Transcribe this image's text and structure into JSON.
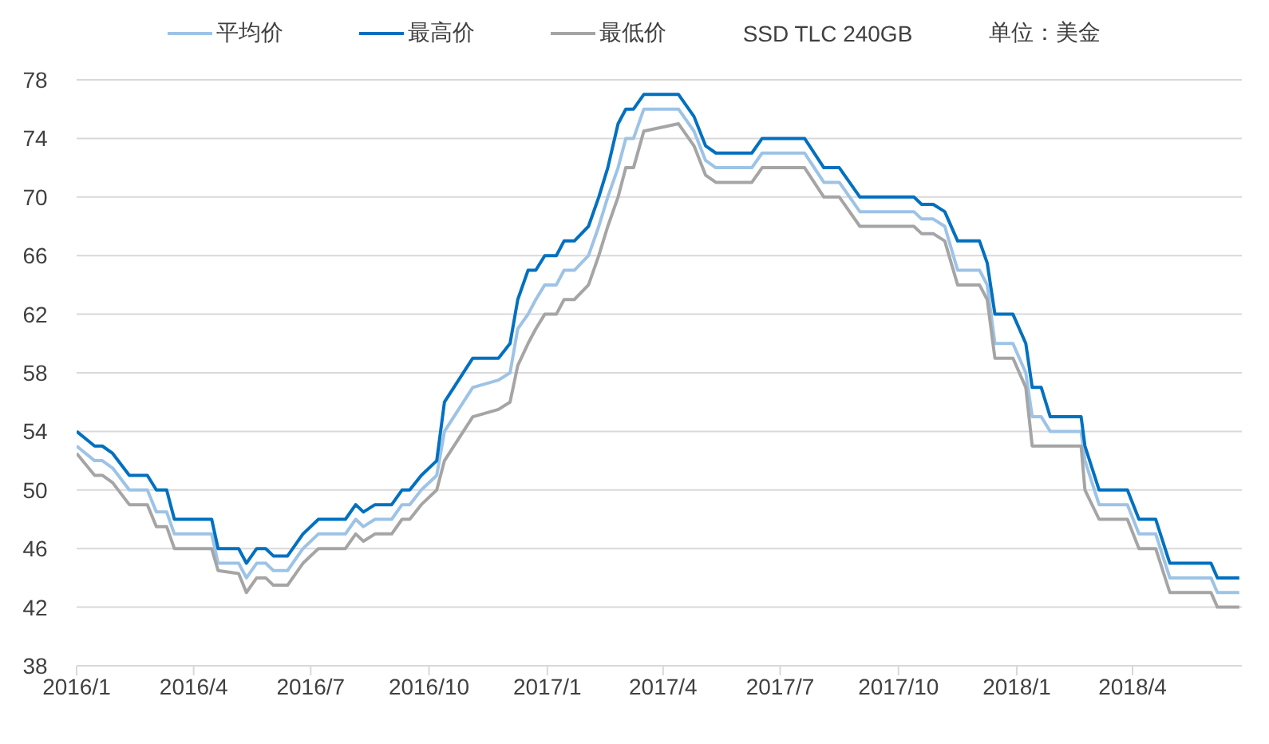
{
  "chart_data": {
    "type": "line",
    "legend": "top",
    "grid": "y",
    "marker": "none",
    "line_style": "solid",
    "annotations": [
      "SSD TLC 240GB",
      "单位：美金"
    ],
    "x": [
      "2016-01-01",
      "2016-01-15",
      "2016-01-21",
      "2016-01-29",
      "2016-02-11",
      "2016-02-25",
      "2016-03-03",
      "2016-03-11",
      "2016-03-17",
      "2016-04-15",
      "2016-04-20",
      "2016-05-06",
      "2016-05-12",
      "2016-05-20",
      "2016-05-27",
      "2016-06-02",
      "2016-06-13",
      "2016-06-25",
      "2016-07-07",
      "2016-07-28",
      "2016-08-05",
      "2016-08-11",
      "2016-08-20",
      "2016-09-02",
      "2016-09-10",
      "2016-09-16",
      "2016-09-25",
      "2016-10-07",
      "2016-10-13",
      "2016-10-24",
      "2016-11-04",
      "2016-11-24",
      "2016-12-03",
      "2016-12-09",
      "2016-12-17",
      "2016-12-23",
      "2016-12-30",
      "2017-01-08",
      "2017-01-14",
      "2017-01-22",
      "2017-02-02",
      "2017-02-10",
      "2017-02-17",
      "2017-02-25",
      "2017-03-03",
      "2017-03-09",
      "2017-03-17",
      "2017-04-13",
      "2017-04-25",
      "2017-05-04",
      "2017-05-12",
      "2017-06-09",
      "2017-06-17",
      "2017-07-20",
      "2017-08-04",
      "2017-08-16",
      "2017-09-01",
      "2017-10-13",
      "2017-10-19",
      "2017-10-28",
      "2017-11-06",
      "2017-11-16",
      "2017-12-03",
      "2017-12-09",
      "2017-12-15",
      "2017-12-29",
      "2018-01-08",
      "2018-01-13",
      "2018-01-20",
      "2018-01-27",
      "2018-02-20",
      "2018-02-23",
      "2018-03-06",
      "2018-03-28",
      "2018-04-06",
      "2018-04-19",
      "2018-04-30",
      "2018-06-01",
      "2018-06-06",
      "2018-06-23"
    ],
    "series": [
      {
        "name": "平均价",
        "color": "#9dc3e6",
        "values": [
          53,
          52,
          52,
          51.5,
          50,
          50,
          48.5,
          48.5,
          47,
          47,
          45,
          45,
          44,
          45,
          45,
          44.5,
          44.5,
          46,
          47,
          47,
          48,
          47.5,
          48,
          48,
          49,
          49,
          50,
          51,
          54,
          55.5,
          57,
          57.5,
          58,
          61,
          62,
          63,
          64,
          64,
          65,
          65,
          66,
          68,
          70,
          72,
          74,
          74,
          76,
          76,
          74.5,
          72.5,
          72,
          72,
          73,
          73,
          71,
          71,
          69,
          69,
          68.5,
          68.5,
          68,
          65,
          65,
          64,
          60,
          60,
          58,
          55,
          55,
          54,
          54,
          52,
          49,
          49,
          47,
          47,
          44,
          44,
          43,
          43
        ]
      },
      {
        "name": "最高价",
        "color": "#0070c0",
        "values": [
          54,
          53,
          53,
          52.5,
          51,
          51,
          50,
          50,
          48,
          48,
          46,
          46,
          45,
          46,
          46,
          45.5,
          45.5,
          47,
          48,
          48,
          49,
          48.5,
          49,
          49,
          50,
          50,
          51,
          52,
          56,
          57.5,
          59,
          59,
          60,
          63,
          65,
          65,
          66,
          66,
          67,
          67,
          68,
          70,
          72,
          75,
          76,
          76,
          77,
          77,
          75.5,
          73.5,
          73,
          73,
          74,
          74,
          72,
          72,
          70,
          70,
          69.5,
          69.5,
          69,
          67,
          67,
          65.5,
          62,
          62,
          60,
          57,
          57,
          55,
          55,
          53,
          50,
          50,
          48,
          48,
          45,
          45,
          44,
          44
        ]
      },
      {
        "name": "最低价",
        "color": "#a5a5a5",
        "values": [
          52.5,
          51,
          51,
          50.5,
          49,
          49,
          47.5,
          47.5,
          46,
          46,
          44.5,
          44.3,
          43,
          44,
          44,
          43.5,
          43.5,
          45,
          46,
          46,
          47,
          46.5,
          47,
          47,
          48,
          48,
          49,
          50,
          52,
          53.5,
          55,
          55.5,
          56,
          58.5,
          60,
          61,
          62,
          62,
          63,
          63,
          64,
          66,
          68,
          70,
          72,
          72,
          74.5,
          75,
          73.5,
          71.5,
          71,
          71,
          72,
          72,
          70,
          70,
          68,
          68,
          67.5,
          67.5,
          67,
          64,
          64,
          63,
          59,
          59,
          57,
          53,
          53,
          53,
          53,
          50,
          48,
          48,
          46,
          46,
          43,
          43,
          42,
          42
        ]
      }
    ],
    "xlim": [
      "2016-01-01",
      "2018-06-25"
    ],
    "xticks": [
      {
        "value": "2016-01-01",
        "label": "2016/1"
      },
      {
        "value": "2016-04-01",
        "label": "2016/4"
      },
      {
        "value": "2016-07-01",
        "label": "2016/7"
      },
      {
        "value": "2016-10-01",
        "label": "2016/10"
      },
      {
        "value": "2017-01-01",
        "label": "2017/1"
      },
      {
        "value": "2017-04-01",
        "label": "2017/4"
      },
      {
        "value": "2017-07-01",
        "label": "2017/7"
      },
      {
        "value": "2017-10-01",
        "label": "2017/10"
      },
      {
        "value": "2018-01-01",
        "label": "2018/1"
      },
      {
        "value": "2018-04-01",
        "label": "2018/4"
      }
    ],
    "ylim": [
      38,
      78
    ],
    "yticks": [
      38,
      42,
      46,
      50,
      54,
      58,
      62,
      66,
      70,
      74,
      78
    ]
  }
}
